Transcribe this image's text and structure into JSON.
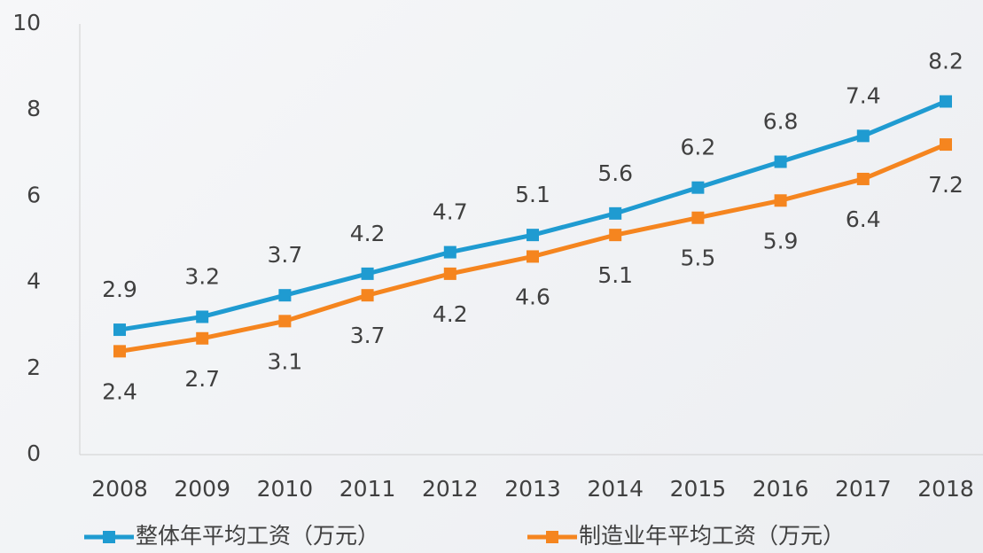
{
  "chart_data": {
    "type": "line",
    "categories": [
      "2008",
      "2009",
      "2010",
      "2011",
      "2012",
      "2013",
      "2014",
      "2015",
      "2016",
      "2017",
      "2018"
    ],
    "series": [
      {
        "name": "整体年平均工资（万元）",
        "color": "#1f9bd1",
        "values": [
          2.9,
          3.2,
          3.7,
          4.2,
          4.7,
          5.1,
          5.6,
          6.2,
          6.8,
          7.4,
          8.2
        ]
      },
      {
        "name": "制造业年平均工资（万元）",
        "color": "#f5851f",
        "values": [
          2.4,
          2.7,
          3.1,
          3.7,
          4.2,
          4.6,
          5.1,
          5.5,
          5.9,
          6.4,
          7.2
        ]
      }
    ],
    "ylim": [
      0,
      10
    ],
    "yticks": [
      0,
      2,
      4,
      6,
      8,
      10
    ],
    "grid": false,
    "legend": "bottom"
  }
}
